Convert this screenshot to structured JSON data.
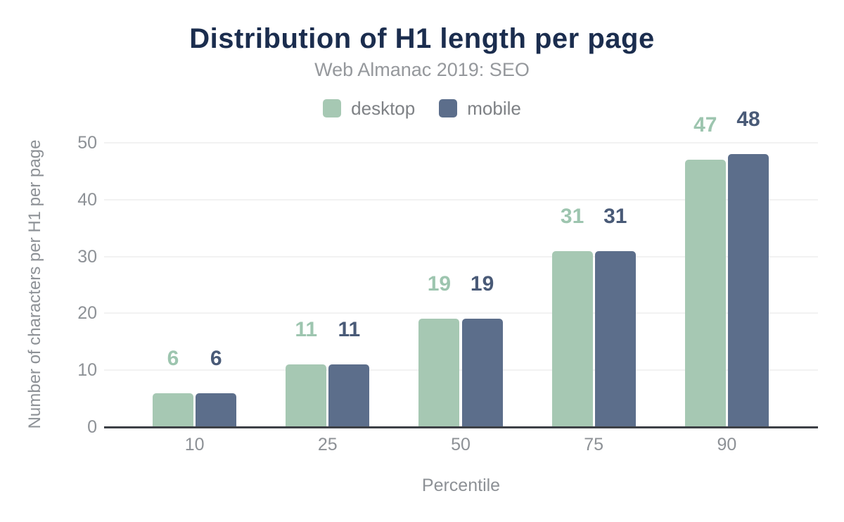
{
  "chart_data": {
    "type": "bar",
    "title": "Distribution of H1 length per page",
    "subtitle": "Web Almanac 2019: SEO",
    "xlabel": "Percentile",
    "ylabel": "Number of characters per H1 per page",
    "categories": [
      "10",
      "25",
      "50",
      "75",
      "90"
    ],
    "series": [
      {
        "name": "desktop",
        "color": "#a6c8b3",
        "label_color": "#9dc5af",
        "values": [
          6,
          11,
          19,
          31,
          47
        ]
      },
      {
        "name": "mobile",
        "color": "#5c6e8b",
        "label_color": "#495a77",
        "values": [
          6,
          11,
          19,
          31,
          48
        ]
      }
    ],
    "y_ticks": [
      0,
      10,
      20,
      30,
      40,
      50
    ],
    "ylim": [
      0,
      50
    ],
    "grid": true,
    "legend_position": "top",
    "palette": {
      "title_color": "#1b2d4e",
      "subtitle_color": "#95989c",
      "tick_color": "#8d9196",
      "legend_text_color": "#7e8185",
      "axis_line_color": "#3d4046",
      "gridline_color": "#f2f2f2",
      "background": "#ffffff"
    }
  }
}
